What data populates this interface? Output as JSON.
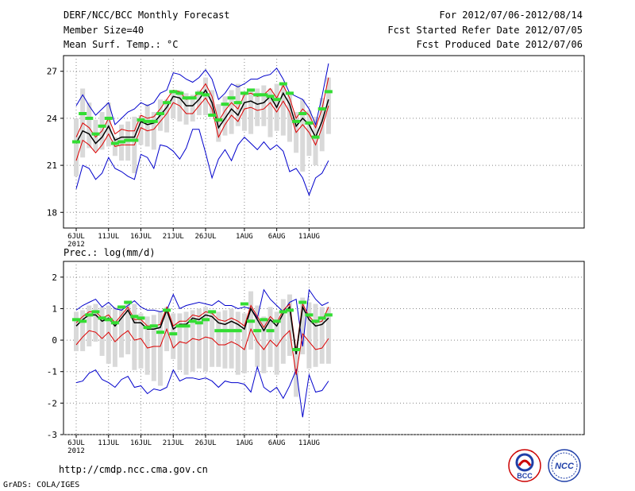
{
  "header": {
    "title": "DERF/NCC/BCC Monthly Forecast",
    "member_size": "Member Size=40",
    "variable1": "Mean Surf. Temp.: °C",
    "period": "For 2012/07/06-2012/08/14",
    "started": "Fcst Started Refer Date 2012/07/05",
    "produced": "Fcst Produced Date 2012/07/06"
  },
  "variable2": "Prec.: log(mm/d)",
  "footer": {
    "url": "http://cmdp.ncc.cma.gov.cn",
    "grads": "GrADS: COLA/IGES",
    "logo_bcc": "BCC",
    "logo_ncc": "NCC"
  },
  "colors": {
    "max_line": "#0000cc",
    "min_line": "#0000cc",
    "pct_line": "#dd0000",
    "mean_line": "#000000",
    "box": "#d9d9d9",
    "obs": "#33dd33",
    "grid": "#888888"
  },
  "chart_data": [
    {
      "type": "line",
      "title": "Mean Surf. Temp.: °C",
      "x_ticks": [
        "6JUL",
        "11JUL",
        "16JUL",
        "21JUL",
        "26JUL",
        "1AUG",
        "6AUG",
        "11AUG"
      ],
      "x_tick_day": [
        0,
        5,
        10,
        15,
        20,
        26,
        31,
        36
      ],
      "year_label": "2012",
      "ylim": [
        17,
        28
      ],
      "yticks": [
        18,
        21,
        24,
        27
      ],
      "ytick_labels": [
        "18",
        "21",
        "24",
        "27"
      ],
      "days": 40,
      "max": [
        24.8,
        25.5,
        24.8,
        24.2,
        24.6,
        25.0,
        23.6,
        24.0,
        24.4,
        24.6,
        25.0,
        24.8,
        25.0,
        25.6,
        25.8,
        26.9,
        26.8,
        26.5,
        26.3,
        26.6,
        27.1,
        26.5,
        25.2,
        25.6,
        26.2,
        26.0,
        26.2,
        26.5,
        26.5,
        26.7,
        26.8,
        27.2,
        26.5,
        25.6,
        25.4,
        25.2,
        24.6,
        23.6,
        25.4,
        27.5
      ],
      "min": [
        19.5,
        21.0,
        20.8,
        20.1,
        20.5,
        21.5,
        20.8,
        20.6,
        20.3,
        20.1,
        21.7,
        21.5,
        20.8,
        22.3,
        22.2,
        21.9,
        21.4,
        22.1,
        23.3,
        23.3,
        21.8,
        20.2,
        21.4,
        22.0,
        21.3,
        22.3,
        22.8,
        22.4,
        22.0,
        22.5,
        22.0,
        22.3,
        21.9,
        20.6,
        20.8,
        20.2,
        19.1,
        20.2,
        20.5,
        21.3
      ],
      "mean": [
        22.4,
        23.2,
        23.0,
        22.4,
        22.8,
        23.5,
        22.6,
        22.8,
        22.8,
        22.8,
        23.8,
        23.6,
        23.7,
        24.2,
        24.7,
        25.4,
        25.3,
        24.8,
        24.8,
        25.2,
        25.8,
        25.0,
        23.4,
        24.0,
        24.6,
        24.2,
        25.0,
        25.1,
        24.9,
        25.0,
        25.4,
        24.7,
        25.6,
        24.9,
        23.5,
        24.0,
        23.6,
        22.8,
        23.8,
        25.2
      ],
      "pct_hi": [
        22.8,
        23.7,
        23.4,
        22.8,
        23.2,
        24.0,
        23.0,
        23.3,
        23.2,
        23.2,
        24.2,
        24.0,
        24.1,
        24.6,
        25.2,
        25.8,
        25.7,
        25.2,
        25.3,
        25.6,
        26.2,
        25.4,
        23.8,
        24.5,
        25.0,
        24.6,
        25.5,
        25.6,
        25.4,
        25.5,
        25.9,
        25.3,
        26.1,
        25.3,
        24.0,
        24.6,
        24.2,
        23.4,
        24.6,
        26.6
      ],
      "pct_lo": [
        21.3,
        22.6,
        22.3,
        21.8,
        22.3,
        23.0,
        22.2,
        22.3,
        22.3,
        22.3,
        23.4,
        23.2,
        23.3,
        23.8,
        24.3,
        25.0,
        24.8,
        24.3,
        24.3,
        24.8,
        25.3,
        24.6,
        22.8,
        23.6,
        24.2,
        23.8,
        24.6,
        24.7,
        24.5,
        24.6,
        25.0,
        24.4,
        25.1,
        24.4,
        23.1,
        23.6,
        23.1,
        22.3,
        23.4,
        24.8
      ],
      "box_hi": [
        24.0,
        25.9,
        25.0,
        23.9,
        24.4,
        25.0,
        22.8,
        23.6,
        23.8,
        24.1,
        24.2,
        24.9,
        24.4,
        25.2,
        25.2,
        25.8,
        25.8,
        25.6,
        25.5,
        25.8,
        26.6,
        25.8,
        24.9,
        25.4,
        25.8,
        26.2,
        25.6,
        25.7,
        25.9,
        26.1,
        25.9,
        26.2,
        26.1,
        25.7,
        24.4,
        25.2,
        24.5,
        24.1,
        25.3,
        26.6
      ],
      "box_lo": [
        20.3,
        21.5,
        22.1,
        21.9,
        22.0,
        22.2,
        21.6,
        21.3,
        21.3,
        20.5,
        22.3,
        22.2,
        22.0,
        23.2,
        23.1,
        24.0,
        23.8,
        23.6,
        23.8,
        24.2,
        24.2,
        24.1,
        22.5,
        22.9,
        23.0,
        23.5,
        23.2,
        23.0,
        23.5,
        23.5,
        22.8,
        23.2,
        22.9,
        22.5,
        21.8,
        20.6,
        21.6,
        21.0,
        21.9,
        23.0
      ],
      "obs": [
        22.5,
        24.3,
        24.0,
        23.0,
        23.5,
        24.0,
        22.4,
        22.5,
        22.6,
        22.6,
        23.9,
        23.8,
        23.8,
        24.3,
        25.0,
        25.7,
        25.6,
        25.3,
        25.3,
        25.6,
        25.5,
        24.2,
        23.9,
        24.9,
        25.3,
        25.0,
        25.6,
        25.8,
        25.5,
        25.5,
        25.4,
        25.2,
        26.2,
        25.6,
        23.8,
        24.3,
        23.7,
        22.8,
        24.6,
        25.7
      ]
    },
    {
      "type": "line",
      "title": "Prec.: log(mm/d)",
      "x_ticks": [
        "6JUL",
        "11JUL",
        "16JUL",
        "21JUL",
        "26JUL",
        "1AUG",
        "6AUG",
        "11AUG"
      ],
      "x_tick_day": [
        0,
        5,
        10,
        15,
        20,
        26,
        31,
        36
      ],
      "year_label": "2012",
      "ylim": [
        -3,
        2.5
      ],
      "yticks": [
        -3,
        -2,
        -1,
        0,
        1,
        2
      ],
      "ytick_labels": [
        "-3",
        "-2",
        "-1",
        "0",
        "1",
        "2"
      ],
      "days": 40,
      "max": [
        0.95,
        1.1,
        1.2,
        1.3,
        1.05,
        1.2,
        1.0,
        0.95,
        1.1,
        1.25,
        1.05,
        0.95,
        0.95,
        0.9,
        0.95,
        1.45,
        1.0,
        1.1,
        1.15,
        1.2,
        1.15,
        1.1,
        1.25,
        1.1,
        1.1,
        1.0,
        1.05,
        1.0,
        0.7,
        1.6,
        1.3,
        1.1,
        0.9,
        1.2,
        1.3,
        -0.2,
        1.6,
        1.3,
        1.1,
        1.2
      ],
      "min": [
        -1.35,
        -1.3,
        -1.05,
        -0.95,
        -1.25,
        -1.35,
        -1.5,
        -1.25,
        -1.15,
        -1.5,
        -1.45,
        -1.7,
        -1.55,
        -1.6,
        -1.5,
        -0.95,
        -1.3,
        -1.2,
        -1.2,
        -1.25,
        -1.2,
        -1.3,
        -1.5,
        -1.3,
        -1.35,
        -1.35,
        -1.4,
        -1.65,
        -0.85,
        -1.5,
        -1.65,
        -1.5,
        -1.85,
        -1.45,
        -0.95,
        -2.45,
        -1.1,
        -1.65,
        -1.6,
        -1.3
      ],
      "mean": [
        0.45,
        0.65,
        0.8,
        0.8,
        0.6,
        0.7,
        0.45,
        0.7,
        0.95,
        0.55,
        0.55,
        0.35,
        0.35,
        0.4,
        0.95,
        0.35,
        0.5,
        0.5,
        0.7,
        0.65,
        0.8,
        0.75,
        0.55,
        0.5,
        0.6,
        0.5,
        0.35,
        1.0,
        0.65,
        0.3,
        0.65,
        0.45,
        0.85,
        1.05,
        -0.45,
        1.05,
        0.65,
        0.45,
        0.5,
        0.7
      ],
      "pct_hi": [
        0.55,
        0.75,
        0.9,
        0.9,
        0.7,
        0.8,
        0.55,
        0.8,
        1.05,
        0.65,
        0.65,
        0.45,
        0.45,
        0.5,
        1.05,
        0.45,
        0.6,
        0.6,
        0.8,
        0.75,
        0.9,
        0.85,
        0.65,
        0.6,
        0.7,
        0.6,
        0.45,
        1.1,
        0.75,
        0.4,
        0.75,
        0.55,
        0.95,
        1.15,
        -0.35,
        1.15,
        0.75,
        0.55,
        0.6,
        1.05
      ],
      "pct_lo": [
        -0.15,
        0.1,
        0.3,
        0.25,
        0.05,
        0.25,
        -0.05,
        0.15,
        0.3,
        0.0,
        0.05,
        -0.25,
        -0.2,
        -0.2,
        0.35,
        -0.25,
        -0.05,
        -0.1,
        0.05,
        0.0,
        0.1,
        0.05,
        -0.15,
        -0.15,
        -0.05,
        -0.15,
        -0.3,
        0.35,
        -0.05,
        -0.3,
        0.0,
        -0.2,
        0.1,
        0.3,
        -1.1,
        0.2,
        -0.05,
        -0.3,
        -0.25,
        0.05
      ],
      "box_hi": [
        0.9,
        0.95,
        1.1,
        1.15,
        1.05,
        1.1,
        1.05,
        1.1,
        1.15,
        1.15,
        0.85,
        0.75,
        0.8,
        0.9,
        1.05,
        0.85,
        0.85,
        0.9,
        0.95,
        1.0,
        1.05,
        0.95,
        0.9,
        0.95,
        1.0,
        0.9,
        0.85,
        1.55,
        1.1,
        0.75,
        1.05,
        0.9,
        1.3,
        1.45,
        -0.2,
        1.35,
        1.2,
        1.15,
        1.05,
        1.05
      ],
      "box_lo": [
        -0.35,
        -0.35,
        -0.2,
        -0.05,
        -0.5,
        -0.75,
        -0.85,
        -0.55,
        -0.45,
        -0.95,
        -0.9,
        -1.1,
        -1.3,
        -1.45,
        -0.35,
        -0.6,
        -0.95,
        -1.1,
        -1.0,
        -0.9,
        -1.0,
        -0.85,
        -0.85,
        -0.9,
        -0.9,
        -1.1,
        -1.05,
        -0.3,
        -0.85,
        -1.05,
        -0.85,
        -1.1,
        -0.75,
        -0.5,
        -1.8,
        -0.45,
        -0.9,
        -0.85,
        -0.75,
        -0.75
      ],
      "obs": [
        0.65,
        0.6,
        0.8,
        0.9,
        0.7,
        0.65,
        0.55,
        1.05,
        1.2,
        0.75,
        0.7,
        0.4,
        0.45,
        0.25,
        0.95,
        0.2,
        0.45,
        0.45,
        0.6,
        0.55,
        0.65,
        0.9,
        0.3,
        0.3,
        0.3,
        0.3,
        1.15,
        0.6,
        0.3,
        0.65,
        0.3,
        0.6,
        0.9,
        0.95,
        -0.3,
        1.2,
        0.8,
        0.6,
        0.7,
        0.8
      ]
    }
  ]
}
